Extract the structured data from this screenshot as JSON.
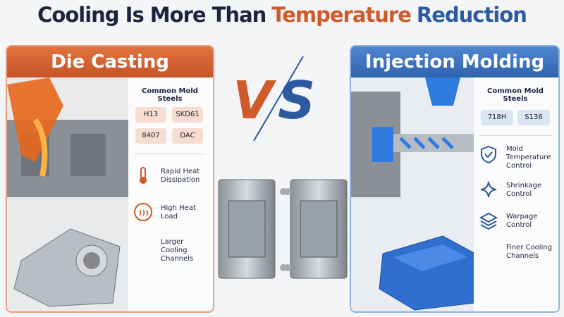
{
  "header": {
    "title_parts": [
      "Cooling Is More Than",
      "Temperature",
      "Reduction"
    ]
  },
  "vs": [
    "V",
    "S"
  ],
  "panels": [
    {
      "title": "Die Casting",
      "steels_label": "Common Mold Steels",
      "steels": [
        "H13",
        "SKD61",
        "8407",
        "DAC"
      ],
      "features": [
        "Rapid Heat Dissipation",
        "High Heat Load",
        "Larger Cooling Channels"
      ]
    },
    {
      "title": "Injection Molding",
      "steels_label": "Common Mold Steels",
      "steels": [
        "718H",
        "S136"
      ],
      "features": [
        "Mold Temperature Control",
        "Shrinkage Control",
        "Warpage Control",
        "Finer Cooling Channels"
      ]
    }
  ]
}
